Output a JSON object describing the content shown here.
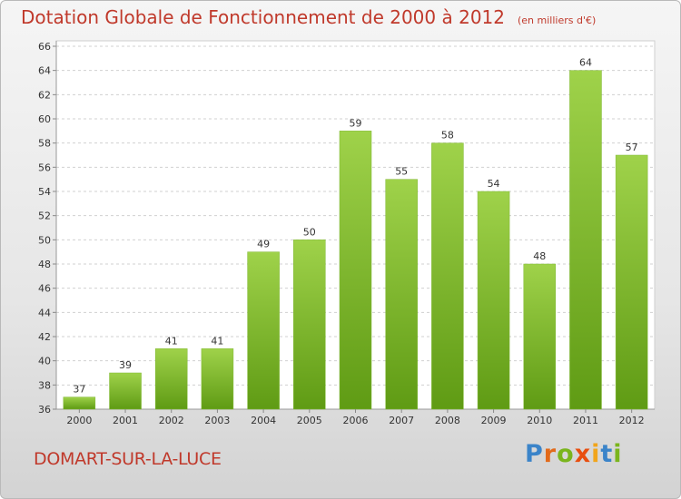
{
  "title": "Dotation Globale de Fonctionnement de 2000 à 2012",
  "subtitle": "(en milliers d'€)",
  "city": "DOMART-SUR-LA-LUCE",
  "logo": {
    "text": "Proxiti",
    "colors": [
      "#3b84c9",
      "#e26a1a",
      "#7ab51d",
      "#e84e0f",
      "#f1a51c",
      "#3b84c9",
      "#7ab51d"
    ]
  },
  "colors": {
    "bar_top": "#9fd24a",
    "bar_bottom": "#5f9b14",
    "title": "#c0392b",
    "grid": "#d0d0d0"
  },
  "chart_data": {
    "type": "bar",
    "categories": [
      "2000",
      "2001",
      "2002",
      "2003",
      "2004",
      "2005",
      "2006",
      "2007",
      "2008",
      "2009",
      "2010",
      "2011",
      "2012"
    ],
    "values": [
      37,
      39,
      41,
      41,
      49,
      50,
      59,
      55,
      58,
      54,
      48,
      64,
      57
    ],
    "title": "Dotation Globale de Fonctionnement de 2000 à 2012",
    "subtitle": "(en milliers d'€)",
    "ylim": [
      36,
      66
    ],
    "yticks": [
      36,
      38,
      40,
      42,
      44,
      46,
      48,
      50,
      52,
      54,
      56,
      58,
      60,
      62,
      64,
      66
    ],
    "grid": true,
    "legend": false
  }
}
